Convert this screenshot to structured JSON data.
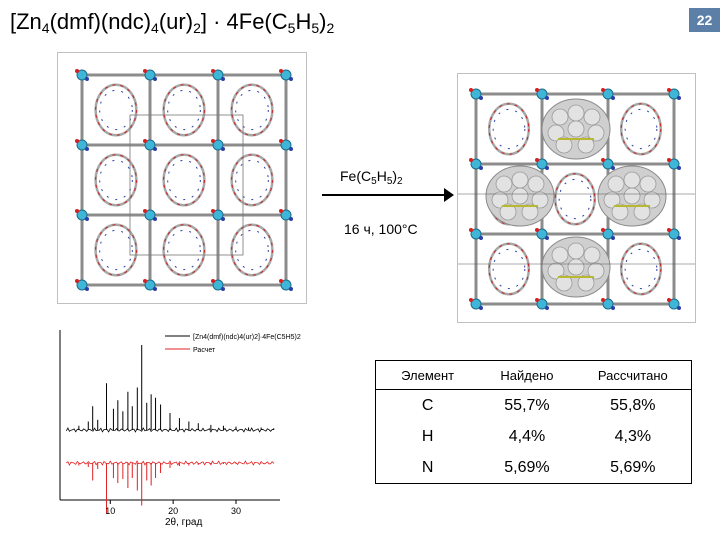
{
  "slide": {
    "title": {
      "main": "[Zn",
      "s1": "4",
      "t1": "(dmf)(ndc)",
      "s2": "4",
      "t2": "(ur)",
      "s3": "2",
      "t3": "] · 4Fe(C",
      "s4": "5",
      "t4": "H",
      "s5": "5",
      "t5": ")",
      "s6": "2"
    },
    "page_number": "22",
    "badge_color": "#5b7fa6"
  },
  "reaction": {
    "reagent": {
      "a": "Fe(C",
      "s1": "5",
      "b": "H",
      "s2": "5",
      "c": ")",
      "s3": "2"
    },
    "conditions": "16 ч, 100°C"
  },
  "structures": {
    "left": {
      "icon": "mof-framework-structure-image"
    },
    "right": {
      "icon": "mof-ferrocene-loaded-structure-image"
    }
  },
  "chart_data": {
    "type": "line",
    "title": "",
    "xlabel": "2θ, град",
    "ylabel": "",
    "xlim": [
      2,
      37
    ],
    "x_ticks": [
      "10",
      "20",
      "30"
    ],
    "grid": false,
    "legend_position": "top-right",
    "series": [
      {
        "name": "[Zn4(dmf)(ndc)4(ur)2]·4Fe(C5H5)2",
        "color": "#000000",
        "x": [
          3,
          5,
          6.5,
          7.2,
          8,
          9.4,
          10.5,
          11.2,
          12,
          12.8,
          13.5,
          14.3,
          15,
          15.8,
          16.5,
          17.2,
          18,
          19.5,
          21,
          22.5,
          24,
          26,
          28,
          30,
          32,
          34,
          36
        ],
        "values": [
          0,
          0.05,
          0.1,
          0.28,
          0.12,
          0.55,
          0.25,
          0.35,
          0.22,
          0.45,
          0.28,
          0.5,
          1.0,
          0.32,
          0.42,
          0.38,
          0.3,
          0.2,
          0.14,
          0.1,
          0.08,
          0.06,
          0.05,
          0.04,
          0.03,
          0.03,
          0.02
        ]
      },
      {
        "name": "Расчет",
        "color": "#e02020",
        "x": [
          3,
          5,
          6.5,
          7.2,
          8,
          9.4,
          10.5,
          11.2,
          12,
          12.8,
          13.5,
          14.3,
          15,
          15.8,
          16.5,
          17.2,
          18,
          19.5,
          21,
          22.5,
          24,
          26,
          28,
          30,
          32,
          34,
          36
        ],
        "values": [
          0,
          0.05,
          0.08,
          0.35,
          0.12,
          1.0,
          0.3,
          0.4,
          0.32,
          0.5,
          0.3,
          0.55,
          0.85,
          0.35,
          0.45,
          0.3,
          0.2,
          0.1,
          0.06,
          0.05,
          0.04,
          0.03,
          0.02,
          0.02,
          0.01,
          0.01,
          0.01
        ]
      }
    ]
  },
  "elemental_table": {
    "headers": [
      "Элемент",
      "Найдено",
      "Рассчитано"
    ],
    "rows": [
      [
        "C",
        "55,7%",
        "55,8%"
      ],
      [
        "H",
        "4,4%",
        "4,3%"
      ],
      [
        "N",
        "5,69%",
        "5,69%"
      ]
    ]
  }
}
